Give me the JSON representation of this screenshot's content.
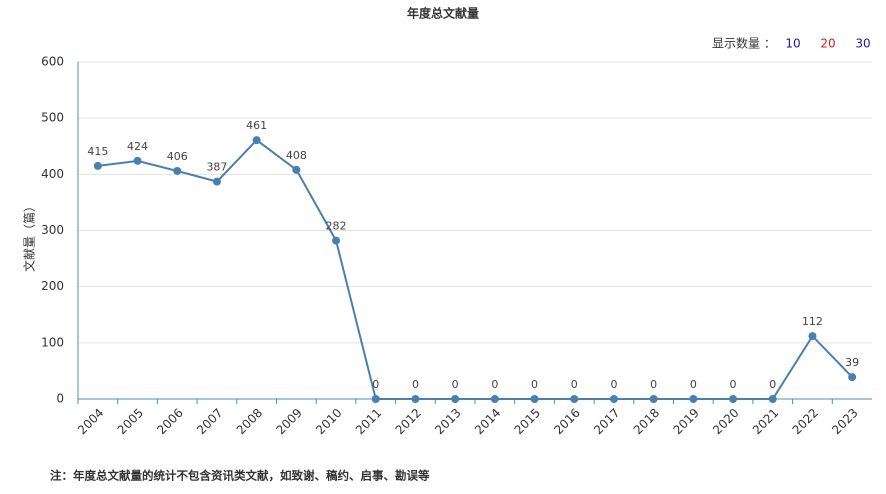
{
  "chart_data": {
    "type": "line",
    "title": "年度总文献量",
    "y_label": "文献量（篇）",
    "categories": [
      "2004",
      "2005",
      "2006",
      "2007",
      "2008",
      "2009",
      "2010",
      "2011",
      "2012",
      "2013",
      "2014",
      "2015",
      "2016",
      "2017",
      "2018",
      "2019",
      "2020",
      "2021",
      "2022",
      "2023"
    ],
    "values": [
      415,
      424,
      406,
      387,
      461,
      408,
      282,
      0,
      0,
      0,
      0,
      0,
      0,
      0,
      0,
      0,
      0,
      0,
      112,
      39
    ],
    "color": "#4a7fb0",
    "ylim": [
      0,
      600
    ],
    "yticks": [
      0,
      100,
      200,
      300,
      400,
      500,
      600
    ],
    "grid": true
  },
  "display_count": {
    "label": "显示数量 ：",
    "options": [
      {
        "value": 10,
        "color": "#1a1aa8"
      },
      {
        "value": 20,
        "color": "#d42020"
      },
      {
        "value": 30,
        "color": "#1a1aa8"
      }
    ]
  },
  "note": "注：年度总文献量的统计不包含资讯类文献，如致谢、稿约、启事、勘误等"
}
